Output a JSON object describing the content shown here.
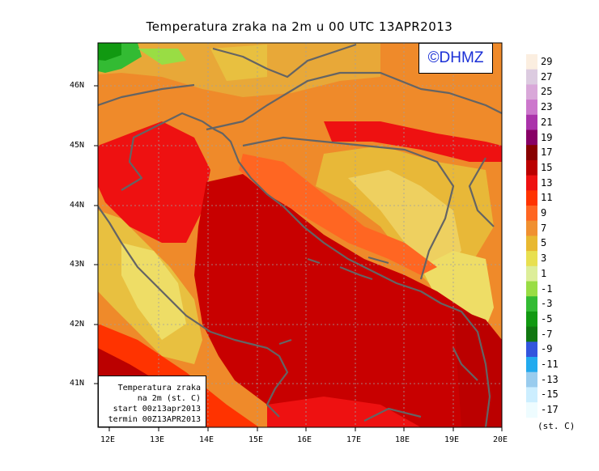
{
  "title": "Temperatura zraka na 2m u 00 UTC 13APR2013",
  "logo": "©DHMZ",
  "info_box": {
    "line1": "Temperatura zraka",
    "line2": "na 2m (st. C)",
    "line3": "start 00z13apr2013",
    "line4": "termin 00Z13APR2013"
  },
  "lat_labels": [
    "46N",
    "45N",
    "44N",
    "43N",
    "42N",
    "41N"
  ],
  "lon_labels": [
    "12E",
    "13E",
    "14E",
    "15E",
    "16E",
    "17E",
    "18E",
    "19E",
    "20E"
  ],
  "legend": {
    "unit": "(st. C)",
    "levels": [
      "29",
      "27",
      "25",
      "23",
      "21",
      "19",
      "17",
      "15",
      "13",
      "11",
      "9",
      "7",
      "5",
      "3",
      "1",
      "-1",
      "-3",
      "-5",
      "-7",
      "-9",
      "-11",
      "-13",
      "-15",
      "-17"
    ],
    "colors": [
      "#fbeee0",
      "#dccbe0",
      "#d9a8d9",
      "#cc77cc",
      "#aa33aa",
      "#880066",
      "#880000",
      "#bb0000",
      "#ee1111",
      "#ff3300",
      "#ff6622",
      "#f09030",
      "#e8b830",
      "#e8e050",
      "#ddee99",
      "#99dd44",
      "#33bb33",
      "#119911",
      "#117711",
      "#3355dd",
      "#22aaee",
      "#99ccee",
      "#cceeff",
      "#eefcff"
    ]
  },
  "colors": {
    "coast": "#646464",
    "grid": "#a0a0a0",
    "sea_hot": "#c80000",
    "land_warm": "#ef8a2a"
  }
}
